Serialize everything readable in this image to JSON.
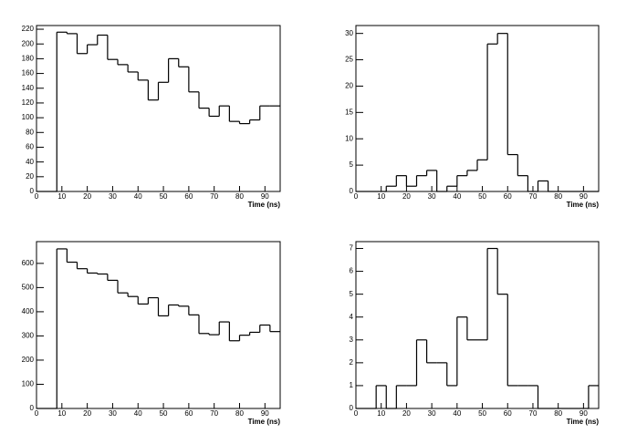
{
  "chart_data": [
    {
      "type": "histogram",
      "x_label": "Time (ns)",
      "bins": [
        0,
        4,
        8,
        12,
        16,
        20,
        24,
        28,
        32,
        36,
        40,
        44,
        48,
        52,
        56,
        60,
        64,
        68,
        72,
        76,
        80,
        84,
        88,
        92,
        96
      ],
      "values": [
        0,
        0,
        216,
        214,
        187,
        199,
        212,
        179,
        172,
        162,
        151,
        124,
        148,
        180,
        169,
        135,
        113,
        102,
        116,
        95,
        92,
        97,
        116,
        116
      ],
      "xlim": [
        0,
        96
      ],
      "xticks": [
        0,
        10,
        20,
        30,
        40,
        50,
        60,
        70,
        80,
        90
      ],
      "ylim": [
        0,
        225
      ],
      "yticks": [
        0,
        20,
        40,
        60,
        80,
        100,
        120,
        140,
        160,
        180,
        200,
        220
      ],
      "color": "#000000"
    },
    {
      "type": "histogram",
      "x_label": "Time (ns)",
      "bins": [
        0,
        4,
        8,
        12,
        16,
        20,
        24,
        28,
        32,
        36,
        40,
        44,
        48,
        52,
        56,
        60,
        64,
        68,
        72,
        76,
        80,
        84,
        88,
        92,
        96
      ],
      "values": [
        0,
        0,
        0,
        1,
        3,
        1,
        3,
        4,
        0,
        1,
        3,
        4,
        6,
        28,
        30,
        7,
        3,
        0,
        2,
        0,
        0,
        0,
        0,
        0
      ],
      "xlim": [
        0,
        96
      ],
      "xticks": [
        0,
        10,
        20,
        30,
        40,
        50,
        60,
        70,
        80,
        90
      ],
      "ylim": [
        0,
        31.5
      ],
      "yticks": [
        0,
        5,
        10,
        15,
        20,
        25,
        30
      ],
      "color": "#000000"
    },
    {
      "type": "histogram",
      "x_label": "Time (ns)",
      "bins": [
        0,
        4,
        8,
        12,
        16,
        20,
        24,
        28,
        32,
        36,
        40,
        44,
        48,
        52,
        56,
        60,
        64,
        68,
        72,
        76,
        80,
        84,
        88,
        92,
        96
      ],
      "values": [
        0,
        0,
        660,
        605,
        578,
        560,
        556,
        530,
        478,
        463,
        432,
        458,
        383,
        428,
        423,
        387,
        310,
        305,
        358,
        280,
        303,
        315,
        345,
        318
      ],
      "xlim": [
        0,
        96
      ],
      "xticks": [
        0,
        10,
        20,
        30,
        40,
        50,
        60,
        70,
        80,
        90
      ],
      "ylim": [
        0,
        690
      ],
      "yticks": [
        0,
        100,
        200,
        300,
        400,
        500,
        600
      ],
      "color": "#000000"
    },
    {
      "type": "histogram",
      "x_label": "Time (ns)",
      "bins": [
        0,
        4,
        8,
        12,
        16,
        20,
        24,
        28,
        32,
        36,
        40,
        44,
        48,
        52,
        56,
        60,
        64,
        68,
        72,
        76,
        80,
        84,
        88,
        92,
        96
      ],
      "values": [
        0,
        0,
        1,
        0,
        1,
        1,
        3,
        2,
        2,
        1,
        4,
        3,
        3,
        7,
        5,
        1,
        1,
        1,
        0,
        0,
        0,
        0,
        0,
        1
      ],
      "xlim": [
        0,
        96
      ],
      "xticks": [
        0,
        10,
        20,
        30,
        40,
        50,
        60,
        70,
        80,
        90
      ],
      "ylim": [
        0,
        7.3
      ],
      "yticks": [
        0,
        1,
        2,
        3,
        4,
        5,
        6,
        7
      ],
      "color": "#000000"
    }
  ]
}
